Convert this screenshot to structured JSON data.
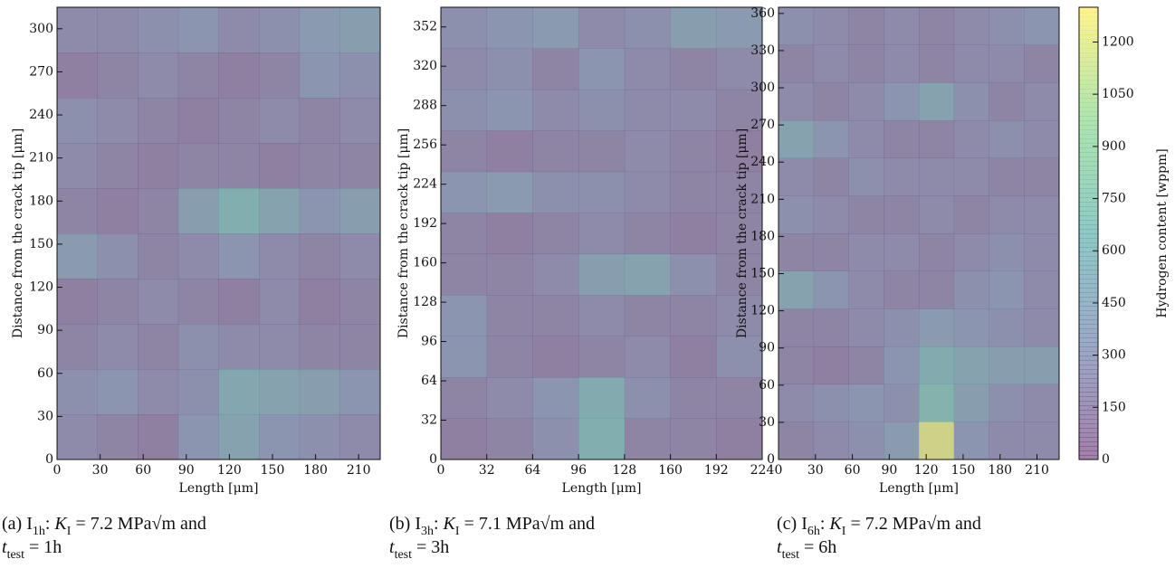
{
  "chart_data": [
    {
      "type": "heatmap",
      "xlabel": "Length [μm]",
      "ylabel": "Distance from the crack tip [μm]",
      "xlim": [
        0,
        225
      ],
      "ylim": [
        0,
        315
      ],
      "xticks": [
        0,
        30,
        60,
        90,
        120,
        150,
        180,
        210
      ],
      "yticks": [
        0,
        30,
        60,
        90,
        120,
        150,
        180,
        210,
        240,
        270,
        300
      ],
      "z": [
        [
          250,
          200,
          150,
          350,
          500,
          350,
          300,
          250
        ],
        [
          300,
          350,
          250,
          300,
          550,
          500,
          450,
          350
        ],
        [
          200,
          250,
          200,
          300,
          250,
          250,
          200,
          200
        ],
        [
          150,
          200,
          250,
          200,
          150,
          250,
          150,
          200
        ],
        [
          400,
          300,
          200,
          250,
          350,
          250,
          200,
          250
        ],
        [
          200,
          150,
          200,
          450,
          650,
          500,
          350,
          450
        ],
        [
          250,
          200,
          150,
          200,
          200,
          150,
          200,
          200
        ],
        [
          300,
          250,
          200,
          150,
          200,
          250,
          200,
          250
        ],
        [
          150,
          200,
          250,
          200,
          150,
          200,
          350,
          300
        ],
        [
          250,
          250,
          300,
          350,
          250,
          300,
          400,
          450
        ]
      ],
      "caption": [
        "(a) I",
        "1h",
        ":  ",
        "K",
        "I",
        "  =  7.2  MPa√m  and",
        "t",
        "test",
        " = 1h"
      ]
    },
    {
      "type": "heatmap",
      "xlabel": "Length [μm]",
      "ylabel": "Distance from the crack tip [μm]",
      "xlim": [
        0,
        224
      ],
      "ylim": [
        0,
        368
      ],
      "xticks": [
        0,
        32,
        64,
        96,
        128,
        160,
        192,
        224
      ],
      "yticks": [
        0,
        32,
        64,
        96,
        128,
        160,
        192,
        224,
        256,
        288,
        320,
        352
      ],
      "z": [
        [
          150,
          200,
          300,
          650,
          200,
          200,
          150
        ],
        [
          200,
          250,
          350,
          600,
          300,
          200,
          200
        ],
        [
          350,
          200,
          150,
          200,
          250,
          150,
          300
        ],
        [
          350,
          200,
          200,
          250,
          200,
          200,
          250
        ],
        [
          200,
          200,
          250,
          450,
          500,
          300,
          200
        ],
        [
          200,
          150,
          200,
          250,
          200,
          150,
          200
        ],
        [
          350,
          400,
          300,
          300,
          250,
          200,
          200
        ],
        [
          200,
          150,
          200,
          200,
          250,
          200,
          150
        ],
        [
          300,
          350,
          250,
          300,
          250,
          250,
          200
        ],
        [
          250,
          300,
          200,
          350,
          250,
          200,
          250
        ],
        [
          300,
          350,
          400,
          250,
          300,
          450,
          400
        ]
      ],
      "caption": [
        "(b) I",
        "3h",
        ": ",
        "K",
        "I",
        " = 7.1 MPa√m and",
        "t",
        "test",
        " = 3h"
      ]
    },
    {
      "type": "heatmap",
      "xlabel": "Length [μm]",
      "ylabel": "Distance from the crack tip [μm]",
      "xlim": [
        0,
        228
      ],
      "ylim": [
        0,
        365
      ],
      "xticks": [
        0,
        30,
        60,
        90,
        120,
        150,
        180,
        210
      ],
      "yticks": [
        0,
        30,
        60,
        90,
        120,
        150,
        180,
        210,
        240,
        270,
        300,
        330,
        360
      ],
      "z": [
        [
          200,
          250,
          300,
          400,
          1200,
          350,
          250,
          250
        ],
        [
          250,
          300,
          350,
          300,
          700,
          450,
          300,
          250
        ],
        [
          200,
          150,
          200,
          350,
          600,
          500,
          450,
          450
        ],
        [
          200,
          200,
          250,
          300,
          400,
          350,
          300,
          250
        ],
        [
          500,
          350,
          250,
          200,
          200,
          300,
          350,
          250
        ],
        [
          200,
          200,
          250,
          250,
          200,
          250,
          300,
          250
        ],
        [
          300,
          250,
          200,
          200,
          250,
          200,
          250,
          250
        ],
        [
          250,
          200,
          300,
          250,
          250,
          250,
          200,
          200
        ],
        [
          500,
          350,
          250,
          200,
          200,
          250,
          300,
          250
        ],
        [
          250,
          200,
          250,
          350,
          500,
          300,
          200,
          250
        ],
        [
          200,
          250,
          200,
          250,
          200,
          250,
          250,
          200
        ],
        [
          300,
          250,
          200,
          250,
          200,
          250,
          300,
          350
        ]
      ],
      "caption": [
        "(c) I",
        "6h",
        ":  ",
        "K",
        "I",
        "  =  7.2  MPa√m  and",
        "t",
        "test",
        " = 6h"
      ],
      "zlabel": "Hydrogen content [wppm]",
      "zlim": [
        0,
        1300
      ],
      "zticks": [
        0,
        150,
        300,
        450,
        600,
        750,
        900,
        1050,
        1200
      ]
    }
  ]
}
